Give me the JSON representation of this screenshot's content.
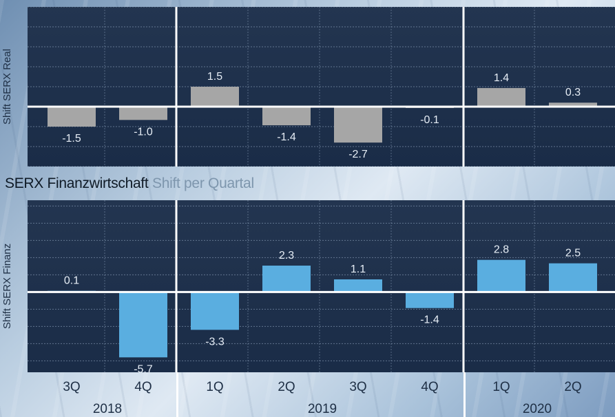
{
  "title": {
    "main": "SERX Finanzwirtschaft",
    "sub": "Shift per Quartal"
  },
  "chart_data": [
    {
      "type": "bar",
      "ylabel": "Shift SERX Real",
      "categories": [
        "3Q 2018",
        "4Q 2018",
        "1Q 2019",
        "2Q 2019",
        "3Q 2019",
        "4Q 2019",
        "1Q 2020",
        "2Q 2020"
      ],
      "values": [
        -1.5,
        -1.0,
        1.5,
        -1.4,
        -2.7,
        -0.1,
        1.4,
        0.3
      ],
      "value_labels": [
        "-1.5",
        "-1.0",
        "1.5",
        "-1.4",
        "-2.7",
        "-0.1",
        "1.4",
        "0.3"
      ],
      "ylim": [
        -4.5,
        7.5
      ],
      "grid": true,
      "bar_color": "#a6a6a6"
    },
    {
      "type": "bar",
      "ylabel": "Shift SERX Finanz",
      "categories": [
        "3Q 2018",
        "4Q 2018",
        "1Q 2019",
        "2Q 2019",
        "3Q 2019",
        "4Q 2019",
        "1Q 2020",
        "2Q 2020"
      ],
      "values": [
        0.1,
        -5.7,
        -3.3,
        2.3,
        1.1,
        -1.4,
        2.8,
        2.5
      ],
      "value_labels": [
        "0.1",
        "-5.7",
        "-3.3",
        "2.3",
        "1.1",
        "-1.4",
        "2.8",
        "2.5"
      ],
      "ylim": [
        -7.0,
        8.0
      ],
      "grid": true,
      "bar_color": "#5aaee0"
    }
  ],
  "x_axis": {
    "quarters": [
      "3Q",
      "4Q",
      "1Q",
      "2Q",
      "3Q",
      "4Q",
      "1Q",
      "2Q"
    ],
    "years": [
      "2018",
      "2019",
      "2020"
    ]
  },
  "colors": {
    "plot_bg_top": "#233550",
    "plot_bg_bottom": "#1a2c47",
    "label_text": "#e6edf5",
    "separator": "#ffffff"
  }
}
